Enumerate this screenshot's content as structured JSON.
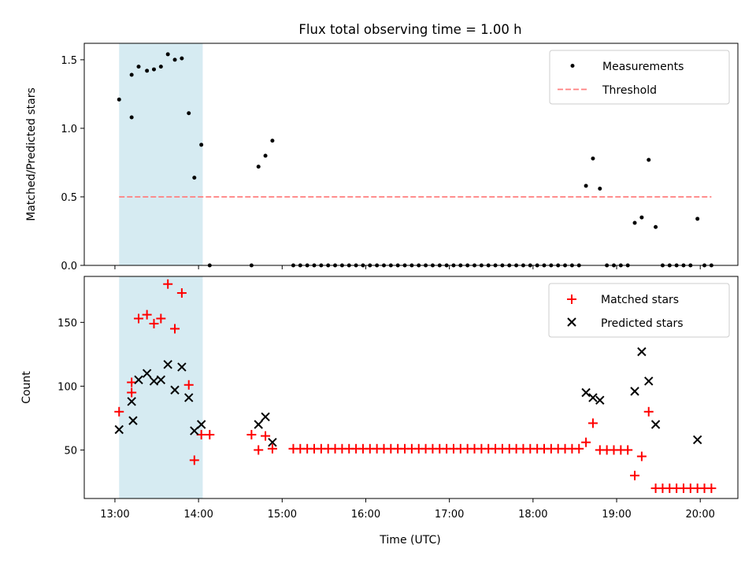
{
  "chart_data": {
    "title": "Flux total observing time = 1.00 h",
    "xlabel": "Time (UTC)",
    "x_ticks": [
      "13:00",
      "14:00",
      "15:00",
      "16:00",
      "17:00",
      "18:00",
      "19:00",
      "20:00"
    ],
    "x_range": [
      "12:38",
      "20:27"
    ],
    "highlight_span": {
      "from": "13:03",
      "to": "14:03",
      "color": "#add8e6"
    },
    "panels": [
      {
        "type": "scatter",
        "ylabel": "Matched/Predicted stars",
        "ylim": [
          0,
          1.62
        ],
        "y_ticks": [
          "0.0",
          "0.5",
          "1.0",
          "1.5"
        ],
        "y_tick_values": [
          0,
          0.5,
          1.0,
          1.5
        ],
        "legend": {
          "position": "upper right",
          "entries": [
            "Measurements",
            "Threshold"
          ]
        },
        "threshold": {
          "name": "Threshold",
          "value": 0.5,
          "from": "13:03",
          "to": "20:08",
          "color": "#ff7f7f",
          "style": "dashed"
        },
        "series": [
          {
            "name": "Measurements",
            "marker": "dot",
            "color": "#000000",
            "x": [
              "13:03",
              "13:12",
              "13:12",
              "13:17",
              "13:23",
              "13:28",
              "13:33",
              "13:38",
              "13:43",
              "13:48",
              "13:53",
              "13:57",
              "14:02",
              "14:08",
              "14:38",
              "14:43",
              "14:48",
              "14:53",
              "15:08",
              "15:13",
              "15:18",
              "15:23",
              "15:28",
              "15:33",
              "15:38",
              "15:43",
              "15:48",
              "15:53",
              "15:58",
              "16:03",
              "16:08",
              "16:13",
              "16:18",
              "16:23",
              "16:28",
              "16:33",
              "16:38",
              "16:43",
              "16:48",
              "16:53",
              "16:58",
              "17:03",
              "17:08",
              "17:13",
              "17:18",
              "17:23",
              "17:28",
              "17:33",
              "17:38",
              "17:43",
              "17:48",
              "17:53",
              "17:58",
              "18:03",
              "18:08",
              "18:13",
              "18:18",
              "18:23",
              "18:28",
              "18:33",
              "18:38",
              "18:43",
              "18:48",
              "18:53",
              "18:58",
              "19:03",
              "19:08",
              "19:13",
              "19:18",
              "19:23",
              "19:28",
              "19:33",
              "19:38",
              "19:43",
              "19:48",
              "19:53",
              "19:58",
              "20:03",
              "20:08"
            ],
            "y": [
              1.21,
              1.08,
              1.39,
              1.45,
              1.42,
              1.43,
              1.45,
              1.54,
              1.5,
              1.51,
              1.11,
              0.64,
              0.88,
              0,
              0,
              0.72,
              0.8,
              0.91,
              0,
              0,
              0,
              0,
              0,
              0,
              0,
              0,
              0,
              0,
              0,
              0,
              0,
              0,
              0,
              0,
              0,
              0,
              0,
              0,
              0,
              0,
              0,
              0,
              0,
              0,
              0,
              0,
              0,
              0,
              0,
              0,
              0,
              0,
              0,
              0,
              0,
              0,
              0,
              0,
              0,
              0,
              0.58,
              0.78,
              0.56,
              0,
              0,
              0,
              0,
              0.31,
              0.35,
              0.77,
              0.28,
              0,
              0,
              0,
              0,
              0,
              0.34,
              0,
              0
            ]
          }
        ]
      },
      {
        "type": "scatter",
        "ylabel": "Count",
        "ylim": [
          12,
          186
        ],
        "y_ticks": [
          "50",
          "100",
          "150"
        ],
        "y_tick_values": [
          50,
          100,
          150
        ],
        "legend": {
          "position": "upper right",
          "entries": [
            "Matched stars",
            "Predicted stars"
          ]
        },
        "series": [
          {
            "name": "Matched stars",
            "marker": "plus",
            "color": "#ff0000",
            "x": [
              "13:03",
              "13:12",
              "13:12",
              "13:17",
              "13:23",
              "13:28",
              "13:33",
              "13:38",
              "13:43",
              "13:48",
              "13:53",
              "13:57",
              "14:02",
              "14:08",
              "14:38",
              "14:43",
              "14:48",
              "14:53",
              "15:08",
              "15:13",
              "15:18",
              "15:23",
              "15:28",
              "15:33",
              "15:38",
              "15:43",
              "15:48",
              "15:53",
              "15:58",
              "16:03",
              "16:08",
              "16:13",
              "16:18",
              "16:23",
              "16:28",
              "16:33",
              "16:38",
              "16:43",
              "16:48",
              "16:53",
              "16:58",
              "17:03",
              "17:08",
              "17:13",
              "17:18",
              "17:23",
              "17:28",
              "17:33",
              "17:38",
              "17:43",
              "17:48",
              "17:53",
              "17:58",
              "18:03",
              "18:08",
              "18:13",
              "18:18",
              "18:23",
              "18:28",
              "18:33",
              "18:38",
              "18:43",
              "18:48",
              "18:53",
              "18:58",
              "19:03",
              "19:08",
              "19:13",
              "19:18",
              "19:23",
              "19:28",
              "19:33",
              "19:38",
              "19:43",
              "19:48",
              "19:53",
              "19:58",
              "20:03",
              "20:08"
            ],
            "y": [
              80,
              95,
              103,
              153,
              156,
              149,
              153,
              180,
              145,
              173,
              101,
              42,
              62,
              62,
              62,
              50,
              61,
              51,
              51,
              51,
              51,
              51,
              51,
              51,
              51,
              51,
              51,
              51,
              51,
              51,
              51,
              51,
              51,
              51,
              51,
              51,
              51,
              51,
              51,
              51,
              51,
              51,
              51,
              51,
              51,
              51,
              51,
              51,
              51,
              51,
              51,
              51,
              51,
              51,
              51,
              51,
              51,
              51,
              51,
              51,
              56,
              71,
              50,
              50,
              50,
              50,
              50,
              30,
              45,
              80,
              20,
              20,
              20,
              20,
              20,
              20,
              20,
              20,
              20
            ]
          },
          {
            "name": "Predicted stars",
            "marker": "x",
            "color": "#000000",
            "x": [
              "13:03",
              "13:12",
              "13:13",
              "13:17",
              "13:23",
              "13:28",
              "13:33",
              "13:38",
              "13:43",
              "13:48",
              "13:53",
              "13:57",
              "14:02",
              "14:43",
              "14:48",
              "14:53",
              "18:38",
              "18:43",
              "18:48",
              "19:13",
              "19:18",
              "19:23",
              "19:28",
              "19:58"
            ],
            "y": [
              66,
              88,
              73,
              105,
              110,
              104,
              105,
              117,
              97,
              115,
              91,
              65,
              70,
              70,
              76,
              56,
              95,
              91,
              89,
              96,
              127,
              104,
              70,
              58
            ]
          }
        ]
      }
    ]
  }
}
